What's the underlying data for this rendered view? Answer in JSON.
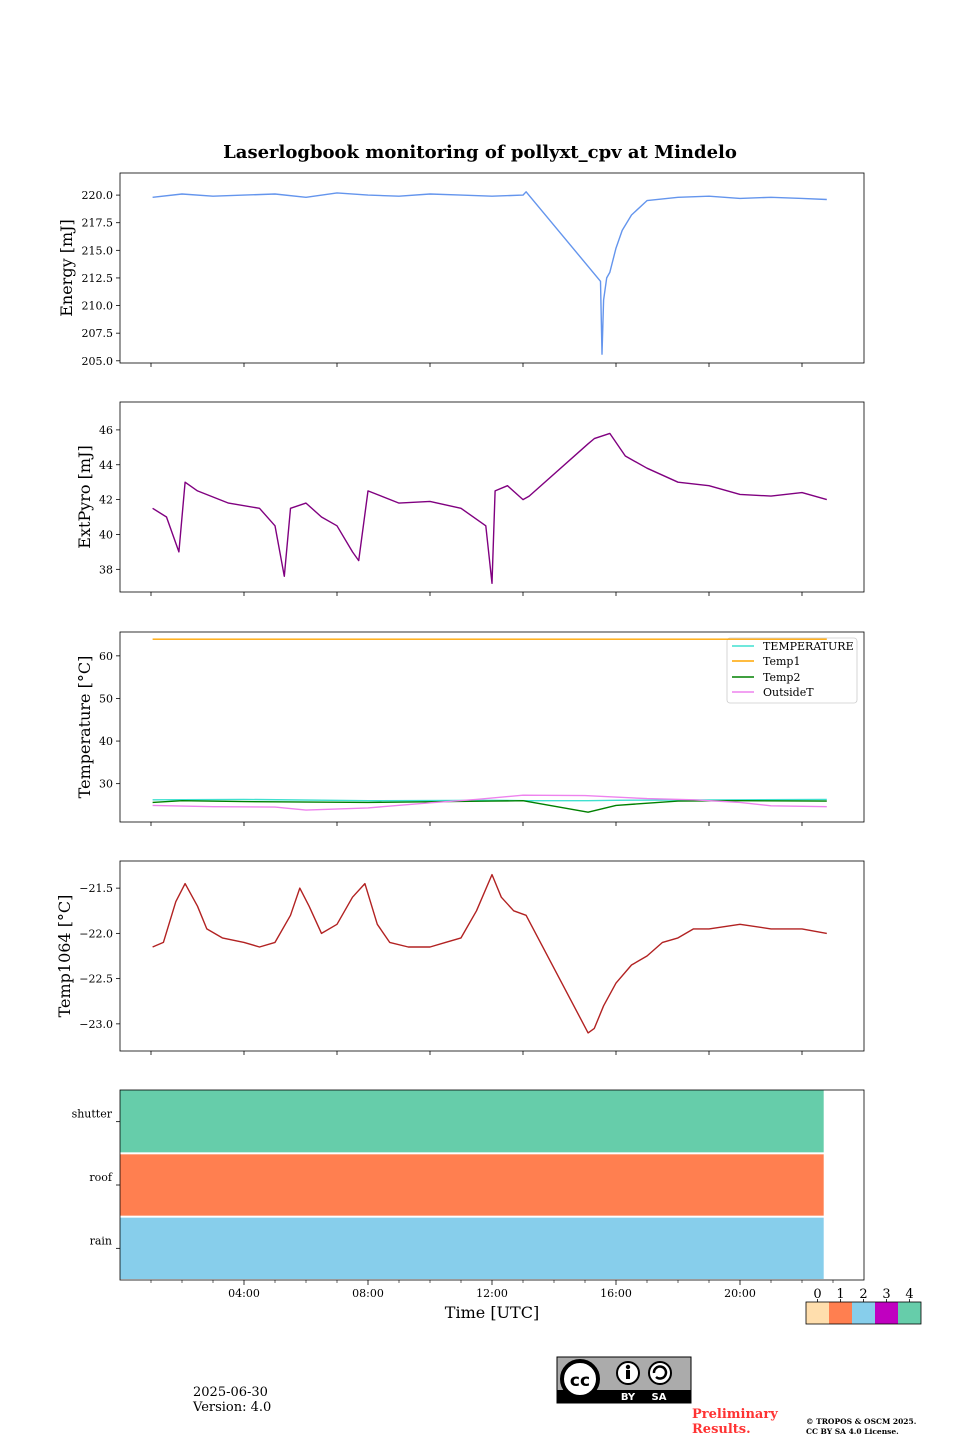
{
  "title": "Laserlogbook monitoring of pollyxt_cpv at Mindelo",
  "colors": {
    "energy": "#6495ED",
    "extpyro": "#800080",
    "temperature": "#40E0D0",
    "temp1": "#FFA500",
    "temp2": "#008000",
    "outsideT": "#EE82EE",
    "temp1064": "#B22222",
    "state0": "#FFDEAD",
    "state1": "#FF7F50",
    "state2": "#87CEEB",
    "state3": "#C000C0",
    "state4": "#66CDAA"
  },
  "chart_data": [
    {
      "type": "line",
      "ylabel": "Energy [mJ]",
      "xlim": [
        0,
        24
      ],
      "ylim": [
        204.8,
        222.0
      ],
      "yticks": [
        205.0,
        207.5,
        210.0,
        212.5,
        215.0,
        217.5,
        220.0
      ],
      "ytick_labels": [
        "205.0",
        "207.5",
        "210.0",
        "212.5",
        "215.0",
        "217.5",
        "220.0"
      ],
      "xticks_hidden": [
        1,
        4,
        7,
        10,
        13,
        16,
        19,
        22
      ],
      "series": [
        {
          "color_key": "energy",
          "x": [
            1.05,
            2.0,
            3.0,
            4.0,
            5.0,
            6.0,
            7.0,
            8.0,
            9.0,
            10.0,
            11.0,
            12.0,
            13.0,
            13.1,
            15.5,
            15.55,
            15.6,
            15.7,
            15.8,
            16.0,
            16.2,
            16.5,
            17.0,
            18.0,
            19.0,
            20.0,
            21.0,
            22.0,
            22.8
          ],
          "y": [
            219.8,
            220.1,
            219.9,
            220.0,
            220.1,
            219.8,
            220.2,
            220.0,
            219.9,
            220.1,
            220.0,
            219.9,
            220.0,
            220.3,
            212.2,
            205.6,
            210.5,
            212.5,
            213.0,
            215.2,
            216.8,
            218.2,
            219.5,
            219.8,
            219.9,
            219.7,
            219.8,
            219.7,
            219.6
          ]
        }
      ]
    },
    {
      "type": "line",
      "ylabel": "ExtPyro [mJ]",
      "xlim": [
        0,
        24
      ],
      "ylim": [
        36.7,
        47.6
      ],
      "yticks": [
        38,
        40,
        42,
        44,
        46
      ],
      "ytick_labels": [
        "38",
        "40",
        "42",
        "44",
        "46"
      ],
      "xticks_hidden": [
        1,
        4,
        7,
        10,
        13,
        16,
        19,
        22
      ],
      "series": [
        {
          "color_key": "extpyro",
          "x": [
            1.05,
            1.5,
            1.9,
            2.1,
            2.5,
            3.5,
            4.5,
            5.0,
            5.3,
            5.5,
            6.0,
            6.5,
            7.0,
            7.5,
            7.7,
            8.0,
            9.0,
            10.0,
            11.0,
            11.8,
            12.0,
            12.1,
            12.5,
            13.0,
            13.2,
            15.1,
            15.3,
            15.8,
            16.3,
            17.0,
            18.0,
            19.0,
            20.0,
            21.0,
            22.0,
            22.8
          ],
          "y": [
            41.5,
            41.0,
            39.0,
            43.0,
            42.5,
            41.8,
            41.5,
            40.5,
            37.6,
            41.5,
            41.8,
            41.0,
            40.5,
            39.0,
            38.5,
            42.5,
            41.8,
            41.9,
            41.5,
            40.5,
            37.2,
            42.5,
            42.8,
            42.0,
            42.2,
            45.2,
            45.5,
            45.8,
            44.5,
            43.8,
            43.0,
            42.8,
            42.3,
            42.2,
            42.4,
            42.0
          ]
        }
      ]
    },
    {
      "type": "line",
      "ylabel": "Temperature [°C]",
      "xlim": [
        0,
        24
      ],
      "ylim": [
        21.0,
        65.6
      ],
      "yticks": [
        30,
        40,
        50,
        60
      ],
      "ytick_labels": [
        "30",
        "40",
        "50",
        "60"
      ],
      "xticks_hidden": [
        1,
        4,
        7,
        10,
        13,
        16,
        19,
        22
      ],
      "legend": {
        "position": "top-right"
      },
      "series": [
        {
          "name": "TEMPERATURE",
          "color_key": "temperature",
          "x": [
            1.05,
            4.0,
            8.0,
            12.0,
            13.1,
            15.1,
            16.0,
            20.0,
            22.8
          ],
          "y": [
            26.2,
            26.3,
            26.0,
            26.1,
            26.0,
            26.0,
            26.1,
            26.2,
            26.3
          ]
        },
        {
          "name": "Temp1",
          "color_key": "temp1",
          "x": [
            1.05,
            22.8
          ],
          "y": [
            63.9,
            63.9
          ]
        },
        {
          "name": "Temp2",
          "color_key": "temp2",
          "x": [
            1.05,
            2.0,
            4.0,
            8.0,
            12.0,
            13.0,
            15.1,
            16.0,
            18.0,
            20.0,
            22.8
          ],
          "y": [
            25.6,
            26.0,
            25.8,
            25.6,
            25.9,
            26.0,
            23.3,
            24.9,
            25.9,
            26.0,
            25.9
          ]
        },
        {
          "name": "OutsideT",
          "color_key": "outsideT",
          "x": [
            1.05,
            3.0,
            5.0,
            6.0,
            8.0,
            10.0,
            11.5,
            13.0,
            15.0,
            17.0,
            18.5,
            20.0,
            21.0,
            22.8
          ],
          "y": [
            24.9,
            24.6,
            24.5,
            23.8,
            24.3,
            25.5,
            26.3,
            27.3,
            27.2,
            26.5,
            26.2,
            25.6,
            24.8,
            24.6
          ]
        }
      ]
    },
    {
      "type": "line",
      "ylabel": "Temp1064 [°C]",
      "xlim": [
        0,
        24
      ],
      "ylim": [
        -23.3,
        -21.2
      ],
      "yticks": [
        -23.0,
        -22.5,
        -22.0,
        -21.5
      ],
      "ytick_labels": [
        "−23.0",
        "−22.5",
        "−22.0",
        "−21.5"
      ],
      "xticks_hidden": [
        1,
        4,
        7,
        10,
        13,
        16,
        19,
        22
      ],
      "series": [
        {
          "color_key": "temp1064",
          "x": [
            1.05,
            1.4,
            1.8,
            2.1,
            2.5,
            2.8,
            3.3,
            4.0,
            4.5,
            5.0,
            5.5,
            5.8,
            6.1,
            6.5,
            7.0,
            7.5,
            7.9,
            8.3,
            8.7,
            9.3,
            10.0,
            10.5,
            11.0,
            11.5,
            12.0,
            12.3,
            12.7,
            13.1,
            15.1,
            15.3,
            15.6,
            16.0,
            16.5,
            17.0,
            17.5,
            18.0,
            18.5,
            19.0,
            20.0,
            21.0,
            22.0,
            22.8
          ],
          "y": [
            -22.15,
            -22.1,
            -21.65,
            -21.45,
            -21.7,
            -21.95,
            -22.05,
            -22.1,
            -22.15,
            -22.1,
            -21.8,
            -21.5,
            -21.7,
            -22.0,
            -21.9,
            -21.6,
            -21.45,
            -21.9,
            -22.1,
            -22.15,
            -22.15,
            -22.1,
            -22.05,
            -21.75,
            -21.35,
            -21.6,
            -21.75,
            -21.8,
            -23.1,
            -23.05,
            -22.8,
            -22.55,
            -22.35,
            -22.25,
            -22.1,
            -22.05,
            -21.95,
            -21.95,
            -21.9,
            -21.95,
            -21.95,
            -22.0
          ]
        }
      ]
    },
    {
      "type": "heatmap",
      "xlabel": "Time [UTC]",
      "xlim": [
        0,
        24
      ],
      "xticks": [
        4,
        8,
        12,
        16,
        20
      ],
      "xtick_labels": [
        "04:00",
        "08:00",
        "12:00",
        "16:00",
        "20:00"
      ],
      "xminor_ticks": [
        1,
        2,
        3,
        5,
        6,
        7,
        9,
        10,
        11,
        13,
        14,
        15,
        17,
        18,
        19,
        21,
        22,
        23
      ],
      "rows": [
        {
          "label": "shutter",
          "state": 4,
          "color_key": "state4",
          "x_end": 22.7
        },
        {
          "label": "roof",
          "state": 1,
          "color_key": "state1",
          "x_end": 22.7
        },
        {
          "label": "rain",
          "state": 2,
          "color_key": "state2",
          "x_end": 22.7
        }
      ],
      "colorbar": {
        "labels": [
          "0",
          "1",
          "2",
          "3",
          "4"
        ],
        "color_keys": [
          "state0",
          "state1",
          "state2",
          "state3",
          "state4"
        ]
      }
    }
  ],
  "footer": {
    "date": "2025-06-30",
    "version": "Version: 4.0",
    "license_badge": {
      "by": "BY",
      "sa": "SA"
    },
    "preliminary_1": "Preliminary",
    "preliminary_2": "Results.",
    "copyright_1": "© TROPOS & OSCM 2025.",
    "copyright_2": "CC BY SA 4.0 License."
  }
}
